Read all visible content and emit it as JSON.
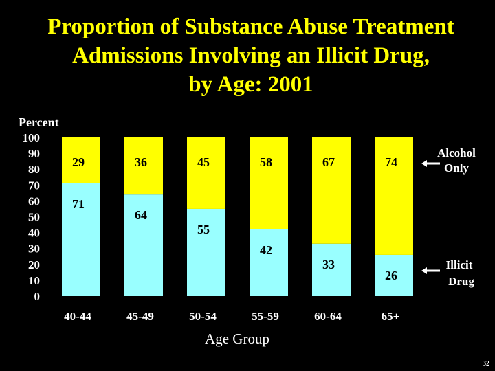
{
  "slide": {
    "title_lines": [
      "Proportion of Substance Abuse Treatment",
      "Admissions Involving an Illicit Drug,",
      "by Age: 2001"
    ],
    "page_number": "32"
  },
  "legend": {
    "alcohol": [
      "Alcohol",
      "Only"
    ],
    "illicit": [
      "Illicit",
      "Drug"
    ]
  },
  "colors": {
    "background": "#000000",
    "title": "#ffff00",
    "illicit_drug": "#99ffff",
    "alcohol_only": "#ffff00"
  },
  "chart_data": {
    "type": "bar",
    "stacked": true,
    "title": "Proportion of Substance Abuse Treatment Admissions Involving an Illicit Drug, by Age: 2001",
    "xlabel": "Age Group",
    "ylabel": "Percent",
    "ylim": [
      0,
      100
    ],
    "yticks": [
      0,
      10,
      20,
      30,
      40,
      50,
      60,
      70,
      80,
      90,
      100
    ],
    "categories": [
      "40-44",
      "45-49",
      "50-54",
      "55-59",
      "60-64",
      "65+"
    ],
    "series": [
      {
        "name": "Illicit Drug",
        "values": [
          71,
          64,
          55,
          42,
          33,
          26
        ],
        "color": "#99ffff"
      },
      {
        "name": "Alcohol Only",
        "values": [
          29,
          36,
          45,
          58,
          67,
          74
        ],
        "color": "#ffff00"
      }
    ],
    "grid": false
  }
}
